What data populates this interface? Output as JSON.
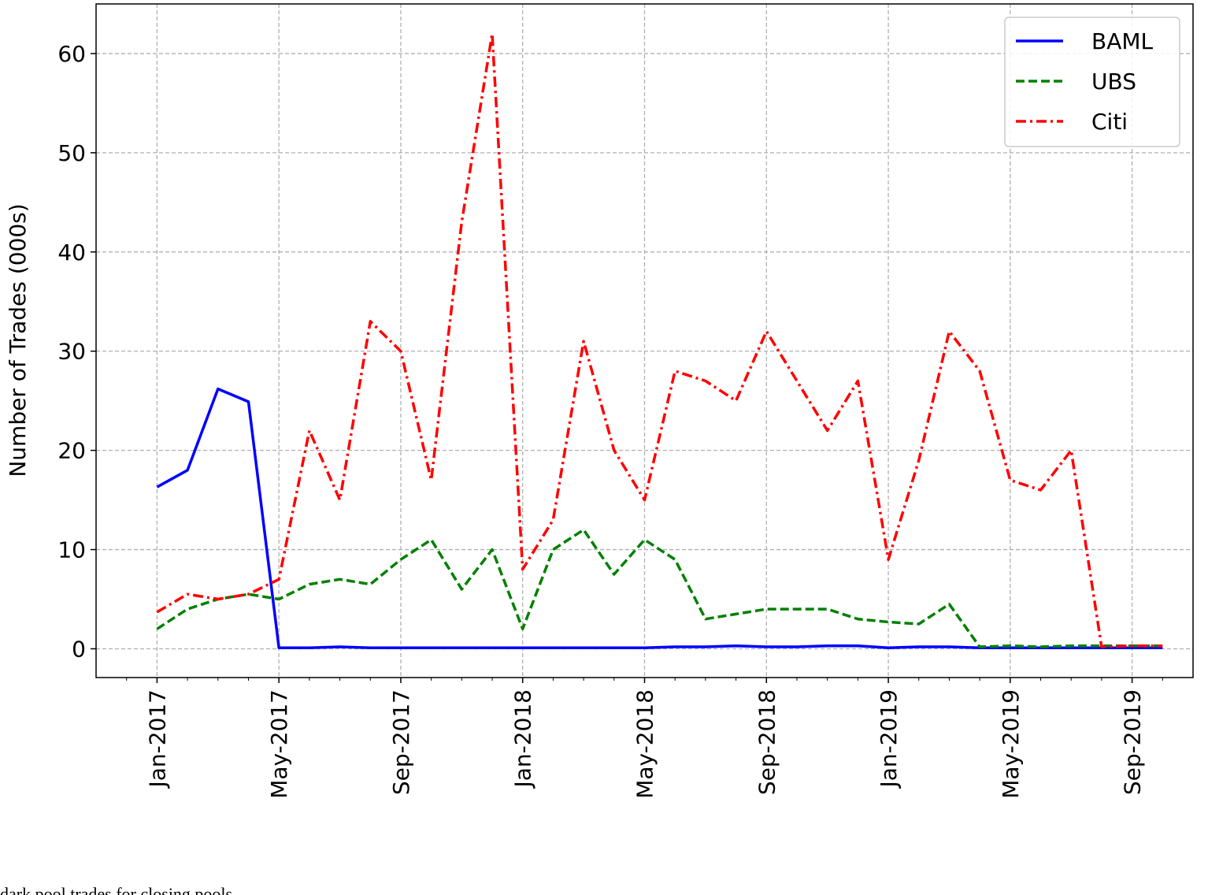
{
  "chart_data": {
    "type": "line",
    "y_label": "Number of Trades (000s)",
    "note": "dark pool trades for closing pools",
    "x": [
      "2017-01",
      "2017-02",
      "2017-03",
      "2017-04",
      "2017-05",
      "2017-06",
      "2017-07",
      "2017-08",
      "2017-09",
      "2017-10",
      "2017-11",
      "2017-12",
      "2018-01",
      "2018-02",
      "2018-03",
      "2018-04",
      "2018-05",
      "2018-06",
      "2018-07",
      "2018-08",
      "2018-09",
      "2018-10",
      "2018-11",
      "2018-12",
      "2019-01",
      "2019-02",
      "2019-03",
      "2019-04",
      "2019-05",
      "2019-06",
      "2019-07",
      "2019-08",
      "2019-09",
      "2019-10"
    ],
    "series": [
      {
        "name": "BAML",
        "color": "#0000ff",
        "linestyle": "solid",
        "values": [
          16.3,
          18,
          26.2,
          24.9,
          0.1,
          0.1,
          0.2,
          0.1,
          0.1,
          0.1,
          0.1,
          0.1,
          0.1,
          0.1,
          0.1,
          0.1,
          0.1,
          0.2,
          0.2,
          0.3,
          0.2,
          0.2,
          0.3,
          0.3,
          0.1,
          0.2,
          0.2,
          0.1,
          0.1,
          0.1,
          0.1,
          0.1,
          0.1,
          0.1
        ]
      },
      {
        "name": "UBS",
        "color": "#008000",
        "linestyle": "dashed",
        "values": [
          2,
          4,
          5,
          5.5,
          5,
          6.5,
          7,
          6.5,
          9,
          11,
          6,
          10,
          2,
          10,
          12,
          7.5,
          11,
          9,
          3,
          3.5,
          4,
          4,
          4,
          3,
          2.7,
          2.5,
          4.5,
          0.2,
          0.3,
          0.2,
          0.3,
          0.3,
          0.3,
          0.3
        ]
      },
      {
        "name": "Citi",
        "color": "#ff0000",
        "linestyle": "dashdot",
        "values": [
          3.7,
          5.5,
          5,
          5.5,
          7,
          22,
          15,
          33,
          30,
          17,
          43,
          62,
          8,
          13,
          31,
          20,
          15,
          28,
          27,
          25,
          32,
          27,
          22,
          27,
          9,
          19,
          32,
          28,
          17,
          16,
          20,
          0.2,
          0.3,
          0.3
        ]
      }
    ],
    "xlim": [
      "2016-11",
      "2019-11"
    ],
    "xticks": [
      {
        "value": "2017-01",
        "label": "Jan-2017"
      },
      {
        "value": "2017-05",
        "label": "May-2017"
      },
      {
        "value": "2017-09",
        "label": "Sep-2017"
      },
      {
        "value": "2018-01",
        "label": "Jan-2018"
      },
      {
        "value": "2018-05",
        "label": "May-2018"
      },
      {
        "value": "2018-09",
        "label": "Sep-2018"
      },
      {
        "value": "2019-01",
        "label": "Jan-2019"
      },
      {
        "value": "2019-05",
        "label": "May-2019"
      },
      {
        "value": "2019-09",
        "label": "Sep-2019"
      }
    ],
    "ylim": [
      -2.9,
      65
    ],
    "yticks": [
      0,
      10,
      20,
      30,
      40,
      50,
      60
    ],
    "grid": true,
    "legend": "upper right"
  }
}
